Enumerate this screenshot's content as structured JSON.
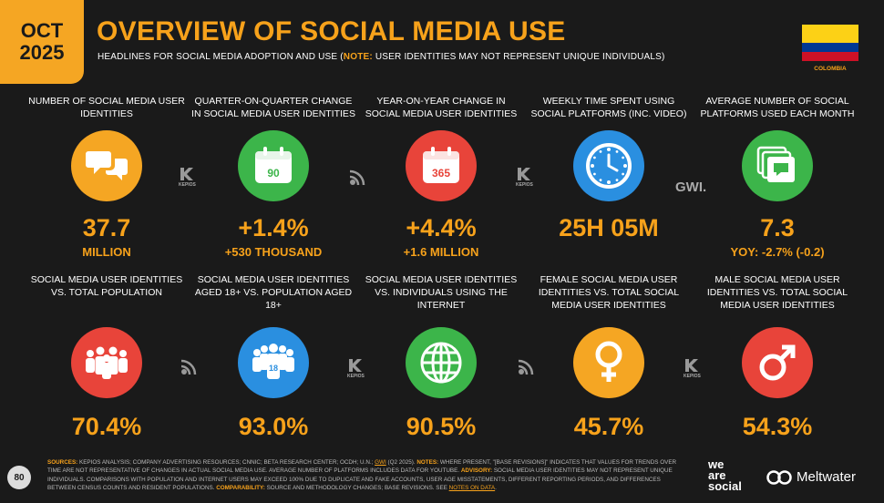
{
  "header": {
    "month": "OCT",
    "year": "2025",
    "title": "OVERVIEW OF SOCIAL MEDIA USE",
    "subtitle_main": "HEADLINES FOR SOCIAL MEDIA ADOPTION AND USE (",
    "subtitle_note_label": "NOTE:",
    "subtitle_note": " USER IDENTITIES MAY NOT REPRESENT UNIQUE INDIVIDUALS)",
    "country": "COLOMBIA"
  },
  "row1": [
    {
      "label": "NUMBER OF SOCIAL MEDIA USER IDENTITIES",
      "value": "37.7",
      "sub": "MILLION",
      "icon": "chat-bubbles-icon",
      "color": "#f5a623"
    },
    {
      "label": "QUARTER-ON-QUARTER CHANGE IN SOCIAL MEDIA USER IDENTITIES",
      "value": "+1.4%",
      "sub": "+530 THOUSAND",
      "icon": "calendar-90-icon",
      "icon_text": "90",
      "color": "#3cb54a"
    },
    {
      "label": "YEAR-ON-YEAR CHANGE IN SOCIAL MEDIA USER IDENTITIES",
      "value": "+4.4%",
      "sub": "+1.6 MILLION",
      "icon": "calendar-365-icon",
      "icon_text": "365",
      "color": "#e8443a"
    },
    {
      "label": "WEEKLY TIME SPENT USING SOCIAL PLATFORMS (INC. VIDEO)",
      "value": "25H 05M",
      "sub": "",
      "icon": "clock-icon",
      "color": "#2a8fe0"
    },
    {
      "label": "AVERAGE NUMBER OF SOCIAL PLATFORMS USED EACH MONTH",
      "value": "7.3",
      "sub": "YOY: -2.7% (-0.2)",
      "icon": "stacked-chat-icon",
      "color": "#3cb54a"
    }
  ],
  "row2": [
    {
      "label": "SOCIAL MEDIA USER IDENTITIES vs. TOTAL POPULATION",
      "value": "70.4%",
      "icon": "people-group-icon",
      "color": "#e8443a"
    },
    {
      "label": "SOCIAL MEDIA USER IDENTITIES AGED 18+ vs. POPULATION AGED 18+",
      "value": "93.0%",
      "icon": "people-18-icon",
      "icon_text": "18",
      "color": "#2a8fe0"
    },
    {
      "label": "SOCIAL MEDIA USER IDENTITIES vs. INDIVIDUALS USING THE INTERNET",
      "value": "90.5%",
      "icon": "globe-icon",
      "color": "#3cb54a"
    },
    {
      "label": "FEMALE SOCIAL MEDIA USER IDENTITIES vs. TOTAL SOCIAL MEDIA USER IDENTITIES",
      "value": "45.7%",
      "icon": "female-symbol-icon",
      "color": "#f5a623"
    },
    {
      "label": "MALE SOCIAL MEDIA USER IDENTITIES vs. TOTAL SOCIAL MEDIA USER IDENTITIES",
      "value": "54.3%",
      "icon": "male-symbol-icon",
      "color": "#e8443a"
    }
  ],
  "sources": {
    "kepios": "KEPIOS",
    "gwi": "GWI."
  },
  "footer": {
    "page": "80",
    "sources_label": "SOURCES:",
    "sources_text": " KEPIOS ANALYSIS; COMPANY ADVERTISING RESOURCES; CNNIC; BETA RESEARCH CENTER; OCDH; U.N.; ",
    "gwi_link": "GWI",
    "sources_text2": " (Q2 2025). ",
    "notes_label": "NOTES:",
    "notes_text": " WHERE PRESENT, \"[BASE REVISIONS]\" INDICATES THAT VALUES FOR TRENDS OVER TIME ARE NOT REPRESENTATIVE OF CHANGES IN ACTUAL SOCIAL MEDIA USE. AVERAGE NUMBER OF PLATFORMS INCLUDES DATA FOR YOUTUBE. ",
    "advisory_label": "ADVISORY:",
    "advisory_text": " SOCIAL MEDIA USER IDENTITIES MAY NOT REPRESENT UNIQUE INDIVIDUALS. COMPARISONS WITH POPULATION AND INTERNET USERS MAY EXCEED 100% DUE TO DUPLICATE AND FAKE ACCOUNTS, USER AGE MISSTATEMENTS, DIFFERENT REPORTING PERIODS, AND DIFFERENCES BETWEEN CENSUS COUNTS AND RESIDENT POPULATIONS. ",
    "comparability_label": "COMPARABILITY:",
    "comparability_text": " SOURCE AND METHODOLOGY CHANGES; BASE REVISIONS. SEE ",
    "notes_link": "NOTES ON DATA",
    "end": ".",
    "brand1_line1": "we",
    "brand1_line2": "are",
    "brand1_line3": "social",
    "brand2": "Meltwater"
  }
}
